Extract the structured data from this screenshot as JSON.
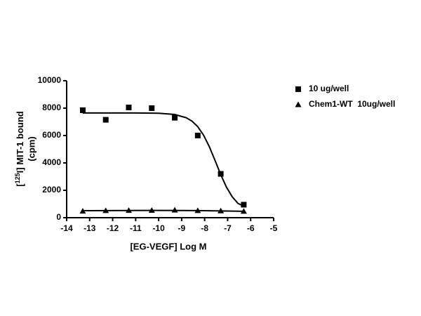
{
  "chart_data": {
    "type": "scatter",
    "x_label": "[EG-VEGF] Log M",
    "y_label": {
      "prefix": "[",
      "sup": "125",
      "rest": "I] MIT-1 bound",
      "line2": "(cpm)"
    },
    "xlim": [
      -14,
      -5
    ],
    "xticks": [
      -14,
      -13,
      -12,
      -11,
      -10,
      -9,
      -8,
      -7,
      -6,
      -5
    ],
    "ylim": [
      0,
      10000
    ],
    "yticks": [
      0,
      2000,
      4000,
      6000,
      8000,
      10000
    ],
    "grid": false,
    "legend": "right",
    "series": [
      {
        "name": "10 ug/well",
        "color": "#000000",
        "marker": "square",
        "x": [
          -13.3,
          -12.3,
          -11.3,
          -10.3,
          -9.3,
          -8.3,
          -7.3,
          -6.3
        ],
        "values": [
          7850,
          7150,
          8050,
          8000,
          7300,
          6000,
          3200,
          950
        ],
        "fit_x": [
          -13.3,
          -12,
          -11,
          -10,
          -9.3,
          -8.8,
          -8.55,
          -8.3,
          -8.05,
          -7.8,
          -7.55,
          -7.3,
          -7.05,
          -6.8,
          -6.55,
          -6.3
        ],
        "fit_values": [
          7650,
          7650,
          7648,
          7630,
          7536,
          7300,
          7049,
          6647,
          6033,
          5197,
          4187,
          3143,
          2225,
          1523,
          1042,
          850
        ]
      },
      {
        "name": "Chem1-WT  10ug/well",
        "color": "#000000",
        "marker": "triangle",
        "x": [
          -13.3,
          -12.3,
          -11.3,
          -10.3,
          -9.3,
          -8.3,
          -7.3,
          -6.3
        ],
        "values": [
          480,
          520,
          530,
          540,
          560,
          520,
          500,
          470
        ],
        "fit_x": [
          -13.3,
          -10.3,
          -8.3,
          -6.3
        ],
        "fit_values": [
          510,
          530,
          520,
          470
        ]
      }
    ]
  }
}
